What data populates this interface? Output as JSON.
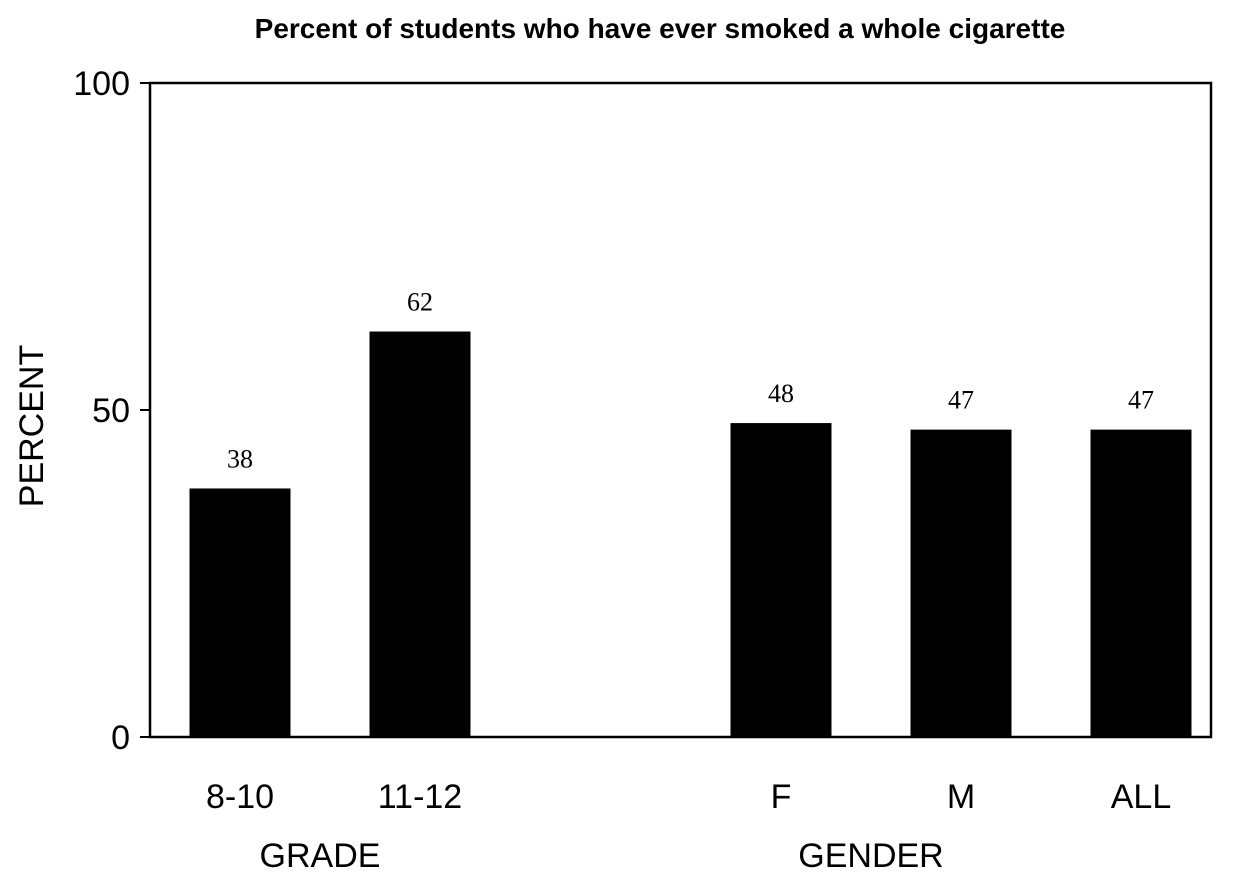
{
  "chart_data": {
    "type": "bar",
    "title": "Percent of students who have ever smoked a whole cigarette",
    "xlabel": "",
    "ylabel": "PERCENT",
    "ylim": [
      0,
      100
    ],
    "yticks": [
      "0",
      "50",
      "100"
    ],
    "grid": false,
    "legend": "none",
    "bar_color": "#000000",
    "groups": [
      {
        "label": "GRADE",
        "categories": [
          "8-10",
          "11-12"
        ],
        "values": [
          38,
          62
        ],
        "value_labels": [
          "38",
          "62"
        ]
      },
      {
        "label": "GENDER",
        "categories": [
          "F",
          "M",
          "ALL"
        ],
        "values": [
          48,
          47,
          47
        ],
        "value_labels": [
          "48",
          "47",
          "47"
        ]
      }
    ]
  }
}
